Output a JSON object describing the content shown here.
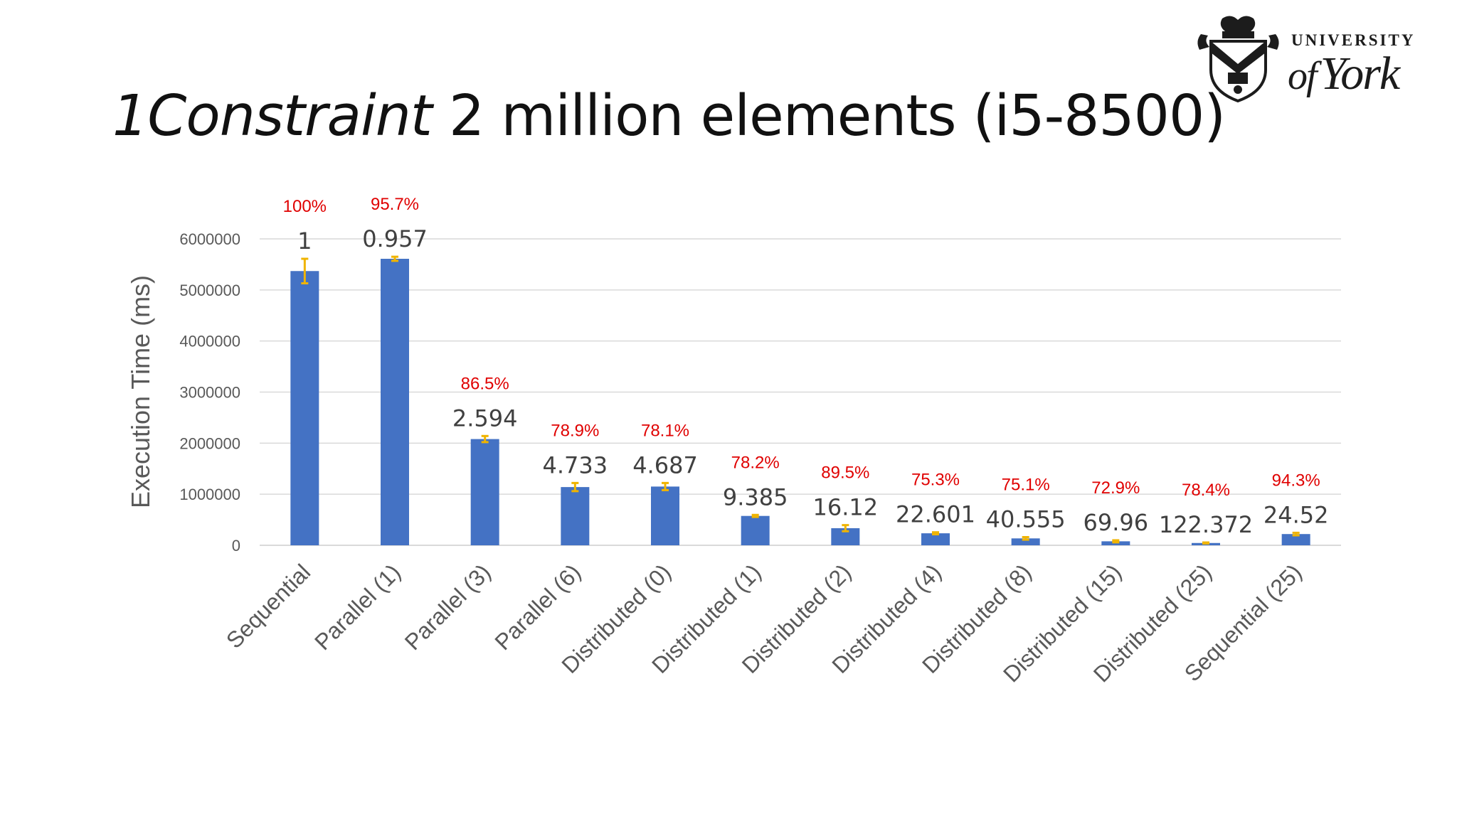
{
  "slide": {
    "title_italic": "1Constraint",
    "title_rest": " 2 million elements (i5-8500)"
  },
  "logo": {
    "line1": "UNIVERSITY",
    "line2_of": "of",
    "line2_name": "York"
  },
  "colors": {
    "bar": "#4472C4",
    "error_bar": "#F0B400",
    "percent_label": "#E00000",
    "grid": "#D9D9D9",
    "axis_text": "#595959"
  },
  "chart_data": {
    "type": "bar",
    "title": "",
    "xlabel": "",
    "ylabel": "Execution Time (ms)",
    "ylim": [
      0,
      6000000
    ],
    "yticks": [
      "0",
      "1000000",
      "2000000",
      "3000000",
      "4000000",
      "5000000",
      "6000000"
    ],
    "grid": true,
    "categories": [
      "Sequential",
      "Parallel (1)",
      "Parallel (3)",
      "Parallel (6)",
      "Distributed (0)",
      "Distributed (1)",
      "Distributed (2)",
      "Distributed (4)",
      "Distributed (8)",
      "Distributed (15)",
      "Distributed (25)",
      "Sequential (25)"
    ],
    "values": [
      5370000,
      5610000,
      2080000,
      1140000,
      1150000,
      575000,
      335000,
      235000,
      135000,
      78000,
      45000,
      220000
    ],
    "error": [
      240000,
      40000,
      60000,
      80000,
      70000,
      20000,
      60000,
      20000,
      25000,
      20000,
      10000,
      25000
    ],
    "data_labels": [
      "1",
      "0.957",
      "2.594",
      "4.733",
      "4.687",
      "9.385",
      "16.12",
      "22.601",
      "40.555",
      "69.96",
      "122.372",
      "24.52"
    ],
    "percent_labels": [
      "100%",
      "95.7%",
      "86.5%",
      "78.9%",
      "78.1%",
      "78.2%",
      "89.5%",
      "75.3%",
      "75.1%",
      "72.9%",
      "78.4%",
      "94.3%"
    ]
  }
}
